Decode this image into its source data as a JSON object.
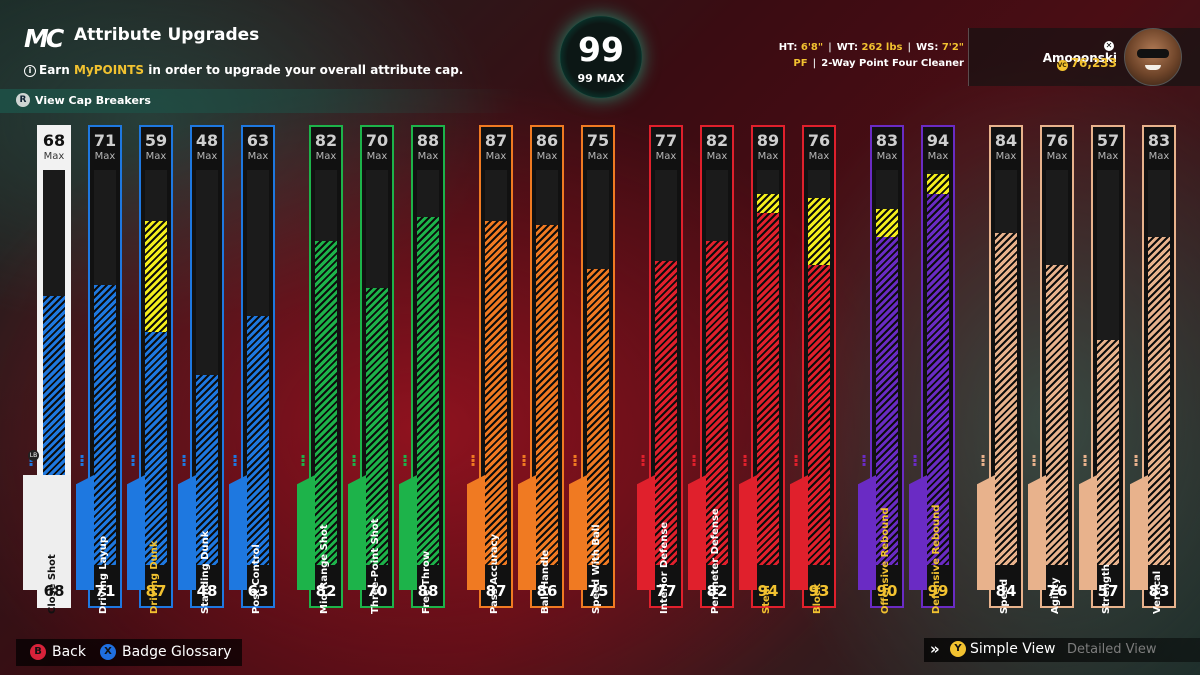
{
  "header": {
    "logo": "MC",
    "title": "Attribute Upgrades",
    "subtitle_prefix": "Earn",
    "subtitle_highlight": "MyPOINTS",
    "subtitle_suffix": "in order to upgrade your overall attribute cap.",
    "cap_breakers_button": "R",
    "cap_breakers_label": "View Cap Breakers"
  },
  "overall": {
    "value": "99",
    "max_label": "99 MAX"
  },
  "player": {
    "ht_label": "HT:",
    "ht": "6'8\"",
    "wt_label": "WT:",
    "wt": "262 lbs",
    "ws_label": "WS:",
    "ws": "7'2\"",
    "position": "PF",
    "build": "2-Way Point Four Cleaner",
    "gamertag": "Amooonski",
    "vc": "76,233"
  },
  "colors": {
    "finishing": "#1e78e0",
    "shooting": "#1db34a",
    "playmaking": "#f07a22",
    "defense": "#e0202c",
    "rebounding": "#6a2bc4",
    "physicals": "#e8b28c",
    "boost": "#f4ee1c",
    "highlight": "#f2c230"
  },
  "max_label": "Max",
  "attributes": [
    {
      "name": "Close Shot",
      "cap": 68,
      "value": 68,
      "base": 68,
      "group": "finishing",
      "selected": true
    },
    {
      "name": "Driving Layup",
      "cap": 71,
      "value": 71,
      "base": 71,
      "group": "finishing"
    },
    {
      "name": "Driving Dunk",
      "cap": 59,
      "value": 87,
      "base": 59,
      "group": "finishing",
      "boosted": true
    },
    {
      "name": "Standing Dunk",
      "cap": 48,
      "value": 48,
      "base": 48,
      "group": "finishing"
    },
    {
      "name": "Post Control",
      "cap": 63,
      "value": 63,
      "base": 63,
      "group": "finishing"
    },
    {
      "name": "Mid-Range Shot",
      "cap": 82,
      "value": 82,
      "base": 82,
      "group": "shooting"
    },
    {
      "name": "Three-Point Shot",
      "cap": 70,
      "value": 70,
      "base": 70,
      "group": "shooting"
    },
    {
      "name": "Free Throw",
      "cap": 88,
      "value": 88,
      "base": 88,
      "group": "shooting"
    },
    {
      "name": "Pass Accuracy",
      "cap": 87,
      "value": 87,
      "base": 87,
      "group": "playmaking"
    },
    {
      "name": "Ball Handle",
      "cap": 86,
      "value": 86,
      "base": 86,
      "group": "playmaking"
    },
    {
      "name": "Speed With Ball",
      "cap": 75,
      "value": 75,
      "base": 75,
      "group": "playmaking"
    },
    {
      "name": "Interior Defense",
      "cap": 77,
      "value": 77,
      "base": 77,
      "group": "defense"
    },
    {
      "name": "Perimeter Defense",
      "cap": 82,
      "value": 82,
      "base": 82,
      "group": "defense"
    },
    {
      "name": "Steal",
      "cap": 89,
      "value": 94,
      "base": 89,
      "group": "defense",
      "boosted": true
    },
    {
      "name": "Block",
      "cap": 76,
      "value": 93,
      "base": 76,
      "group": "defense",
      "boosted": true
    },
    {
      "name": "Offensive Rebound",
      "cap": 83,
      "value": 90,
      "base": 83,
      "group": "rebounding",
      "boosted": true
    },
    {
      "name": "Defensive Rebound",
      "cap": 94,
      "value": 99,
      "base": 94,
      "group": "rebounding",
      "boosted": true
    },
    {
      "name": "Speed",
      "cap": 84,
      "value": 84,
      "base": 84,
      "group": "physicals"
    },
    {
      "name": "Agility",
      "cap": 76,
      "value": 76,
      "base": 76,
      "group": "physicals"
    },
    {
      "name": "Strength",
      "cap": 57,
      "value": 57,
      "base": 57,
      "group": "physicals"
    },
    {
      "name": "Vertical",
      "cap": 83,
      "value": 83,
      "base": 83,
      "group": "physicals"
    }
  ],
  "selected_hint": "LB",
  "footer": {
    "back_button": "B",
    "back_label": "Back",
    "glossary_button": "X",
    "glossary_label": "Badge Glossary",
    "view_arrows": "»",
    "view_button": "Y",
    "simple_view": "Simple View",
    "detailed_view": "Detailed View"
  }
}
